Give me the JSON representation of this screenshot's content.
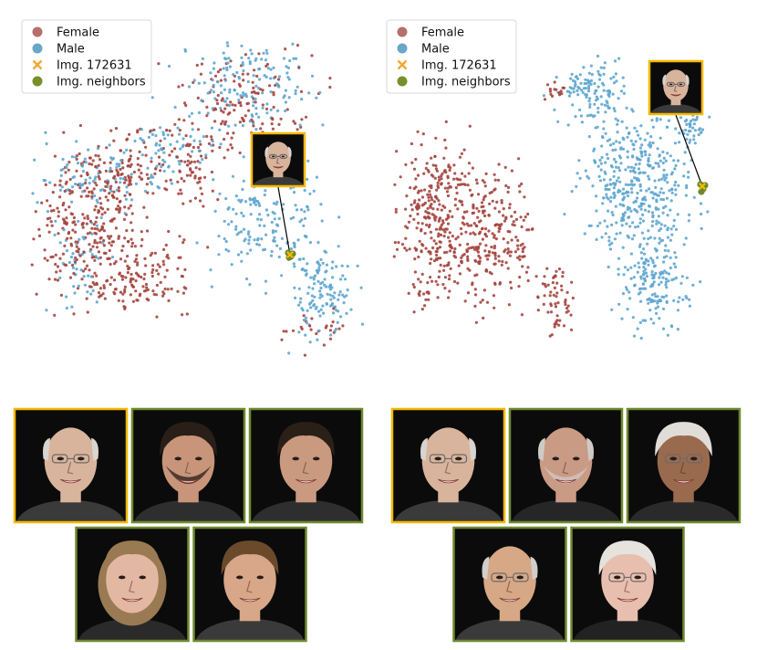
{
  "legend": {
    "entries": [
      {
        "label": "Female",
        "marker": "circle",
        "color": "#b5706c"
      },
      {
        "label": "Male",
        "marker": "circle",
        "color": "#6aa6c8"
      },
      {
        "label": "Img. 172631",
        "marker": "x",
        "color": "#f0a830"
      },
      {
        "label": "Img. neighbors",
        "marker": "circle",
        "color": "#77902a"
      }
    ]
  },
  "colors": {
    "female": "#a4453f",
    "male": "#5fa6cf",
    "query_frame": "#f5b800",
    "neighbor": "#6b8a2a",
    "neighbor_frame": "#6f8a2e",
    "arrow": "#000000",
    "photo_bg": "#0b0b0b"
  },
  "chart_data": [
    {
      "type": "scatter",
      "title": "",
      "xlabel": "",
      "ylabel": "",
      "axes": "hidden",
      "series": [
        {
          "name": "Female",
          "approx_points": 700
        },
        {
          "name": "Male",
          "approx_points": 700
        },
        {
          "name": "Img. 172631",
          "points": 1
        },
        {
          "name": "Img. neighbors",
          "points": 4
        }
      ],
      "query_image": "Img. 172631",
      "neighbors": [
        "neighbor-1",
        "neighbor-2",
        "neighbor-3",
        "neighbor-4"
      ]
    },
    {
      "type": "scatter",
      "title": "",
      "xlabel": "",
      "ylabel": "",
      "axes": "hidden",
      "series": [
        {
          "name": "Female",
          "approx_points": 700
        },
        {
          "name": "Male",
          "approx_points": 700
        },
        {
          "name": "Img. 172631",
          "points": 1
        },
        {
          "name": "Img. neighbors",
          "points": 4
        }
      ],
      "query_image": "Img. 172631",
      "neighbors": [
        "neighbor-1",
        "neighbor-2",
        "neighbor-3",
        "neighbor-4"
      ]
    }
  ],
  "faces": {
    "query": {
      "kind": "query",
      "skin": "#d9b49c",
      "hair": "#d8d4d0",
      "glasses": true,
      "bald": true,
      "beard": false,
      "long_hair": false,
      "shirt": "#3a3a3a"
    },
    "left_neighbors": [
      {
        "kind": "neighbor",
        "skin": "#c8957a",
        "hair": "#2a1e18",
        "glasses": false,
        "bald": false,
        "beard": true,
        "long_hair": false,
        "shirt": "#2e2e2e"
      },
      {
        "kind": "neighbor",
        "skin": "#c99a80",
        "hair": "#2b2018",
        "glasses": false,
        "bald": false,
        "beard": false,
        "long_hair": false,
        "shirt": "#2e2e2e"
      },
      {
        "kind": "neighbor",
        "skin": "#e2b8a2",
        "hair": "#9a7a52",
        "glasses": false,
        "bald": false,
        "beard": false,
        "long_hair": true,
        "shirt": "#2a2a2a"
      },
      {
        "kind": "neighbor",
        "skin": "#d8a688",
        "hair": "#6b4a2c",
        "glasses": false,
        "bald": false,
        "beard": false,
        "long_hair": false,
        "shirt": "#3a3a3a"
      }
    ],
    "right_neighbors": [
      {
        "kind": "neighbor",
        "skin": "#c99a84",
        "hair": "#cfcac6",
        "glasses": false,
        "bald": true,
        "beard": true,
        "long_hair": false,
        "shirt": "#262626"
      },
      {
        "kind": "neighbor",
        "skin": "#9a6a4e",
        "hair": "#e0ddd8",
        "glasses": true,
        "bald": false,
        "beard": false,
        "long_hair": false,
        "shirt": "#2a2a2a"
      },
      {
        "kind": "neighbor",
        "skin": "#d6a886",
        "hair": "#d2cfcb",
        "glasses": true,
        "bald": true,
        "beard": false,
        "long_hair": false,
        "shirt": "#3a3a3a"
      },
      {
        "kind": "neighbor",
        "skin": "#e8bfae",
        "hair": "#e6e2de",
        "glasses": true,
        "bald": false,
        "beard": false,
        "long_hair": false,
        "shirt": "#222222"
      }
    ]
  }
}
